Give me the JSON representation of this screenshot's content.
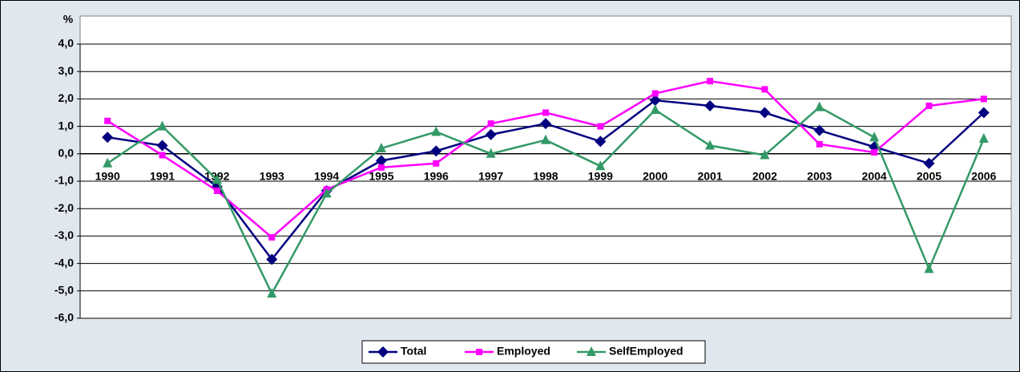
{
  "chart_data": {
    "type": "line",
    "y_label": "%",
    "categories": [
      "1990",
      "1991",
      "1992",
      "1993",
      "1994",
      "1995",
      "1996",
      "1997",
      "1998",
      "1999",
      "2000",
      "2001",
      "2002",
      "2003",
      "2004",
      "2005",
      "2006"
    ],
    "series": [
      {
        "name": "Total",
        "color": "#000080",
        "marker": "diamond",
        "values": [
          0.6,
          0.3,
          -1.2,
          -3.85,
          -1.35,
          -0.25,
          0.1,
          0.7,
          1.1,
          0.45,
          1.95,
          1.75,
          1.5,
          0.85,
          0.25,
          -0.35,
          1.5
        ]
      },
      {
        "name": "Employed",
        "color": "#ff00ff",
        "marker": "square",
        "values": [
          1.2,
          -0.05,
          -1.35,
          -3.05,
          -1.3,
          -0.5,
          -0.35,
          1.1,
          1.5,
          1.0,
          2.2,
          2.65,
          2.35,
          0.35,
          0.05,
          1.75,
          2.0
        ]
      },
      {
        "name": "SelfEmployed",
        "color": "#339966",
        "marker": "triangle",
        "values": [
          -0.35,
          1.0,
          -0.95,
          -5.1,
          -1.45,
          0.2,
          0.8,
          0.0,
          0.5,
          -0.45,
          1.6,
          0.3,
          -0.05,
          1.7,
          0.6,
          -4.2,
          0.55
        ]
      }
    ],
    "ylim": [
      -6,
      4
    ],
    "yticks": [
      {
        "value": -6,
        "label": "-6,0"
      },
      {
        "value": -5,
        "label": "-5,0"
      },
      {
        "value": -4,
        "label": "-4,0"
      },
      {
        "value": -3,
        "label": "-3,0"
      },
      {
        "value": -2,
        "label": "-2,0"
      },
      {
        "value": -1,
        "label": "-1,0"
      },
      {
        "value": 0,
        "label": "0,0"
      },
      {
        "value": 1,
        "label": "1,0"
      },
      {
        "value": 2,
        "label": "2,0"
      },
      {
        "value": 3,
        "label": "3,0"
      },
      {
        "value": 4,
        "label": "4,0"
      }
    ],
    "grid": true,
    "legend": "bottom"
  }
}
